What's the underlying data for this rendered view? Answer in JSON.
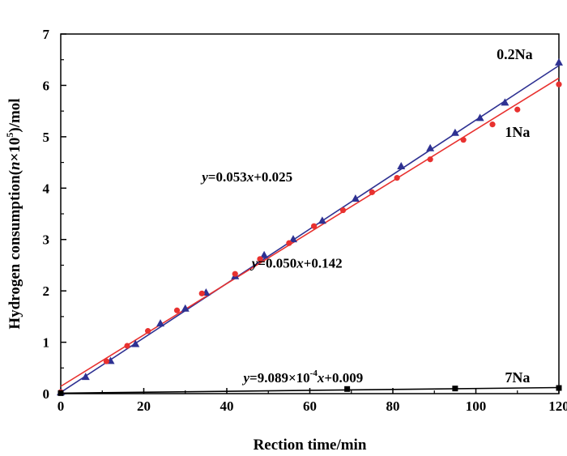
{
  "chart_data": {
    "type": "scatter",
    "xlabel": "Rection time/min",
    "ylabel_parts": {
      "before": "Hydrogen consumption(",
      "var": "n",
      "mid": "×10",
      "sup": "5",
      "after": ")/mol"
    },
    "xlim": [
      0,
      120
    ],
    "ylim": [
      0,
      7
    ],
    "xticks": [
      0,
      20,
      40,
      60,
      80,
      100,
      120
    ],
    "yticks": [
      0,
      1,
      2,
      3,
      4,
      5,
      6,
      7
    ],
    "grid": false,
    "series": [
      {
        "name": "0.2Na",
        "color": "#2e3192",
        "marker": "triangle",
        "x": [
          0,
          6,
          12,
          18,
          24,
          30,
          35,
          42,
          49,
          56,
          63,
          71,
          82,
          89,
          95,
          101,
          107,
          120
        ],
        "y": [
          0.03,
          0.33,
          0.64,
          0.97,
          1.37,
          1.66,
          1.97,
          2.29,
          2.7,
          3.01,
          3.37,
          3.8,
          4.43,
          4.78,
          5.08,
          5.37,
          5.67,
          6.45
        ],
        "fit": {
          "slope": 0.053,
          "intercept": 0.025,
          "x_range": [
            0,
            120
          ]
        }
      },
      {
        "name": "1Na",
        "color": "#e8312f",
        "marker": "circle",
        "x": [
          0,
          11,
          16,
          21,
          28,
          34,
          42,
          48,
          55,
          61,
          68,
          75,
          81,
          89,
          97,
          104,
          110,
          120
        ],
        "y": [
          0.03,
          0.63,
          0.93,
          1.22,
          1.62,
          1.95,
          2.33,
          2.62,
          2.93,
          3.26,
          3.57,
          3.92,
          4.2,
          4.56,
          4.94,
          5.24,
          5.53,
          6.02
        ],
        "fit": {
          "slope": 0.05,
          "intercept": 0.142,
          "x_range": [
            0,
            120
          ]
        }
      },
      {
        "name": "7Na",
        "color": "#000000",
        "marker": "square",
        "x": [
          0,
          69,
          95,
          120
        ],
        "y": [
          0.01,
          0.09,
          0.1,
          0.11
        ],
        "fit": {
          "slope": 0.0009089,
          "intercept": 0.009,
          "x_range": [
            0,
            120
          ]
        }
      }
    ],
    "annotations": [
      {
        "id": "eq-1",
        "y_italic": "y",
        "text": "=0.053",
        "x_italic": "x",
        "rest": "+0.025",
        "at": [
          34,
          4.13
        ]
      },
      {
        "id": "eq-2",
        "y_italic": "y",
        "text": "=0.050",
        "x_italic": "x",
        "rest": "+0.142",
        "at": [
          46,
          2.45
        ]
      },
      {
        "id": "eq-3",
        "y_italic": "y",
        "text": "=9.089×10",
        "sup": "-4",
        "x_italic": "x",
        "rest": "+0.009",
        "at": [
          44,
          0.22
        ]
      }
    ],
    "series_labels": [
      {
        "name": "0.2Na",
        "at": [
          105,
          6.51
        ]
      },
      {
        "name": "1Na",
        "at": [
          107,
          5.0
        ]
      },
      {
        "name": "7Na",
        "at": [
          107,
          0.22
        ]
      }
    ]
  }
}
